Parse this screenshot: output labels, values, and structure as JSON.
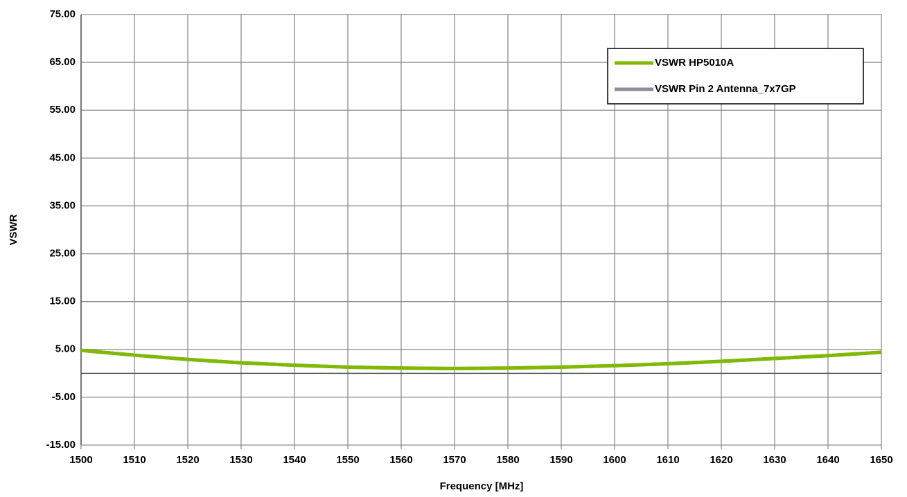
{
  "chart_data": {
    "type": "line",
    "x_label": "Frequency [MHz]",
    "y_label": "VSWR",
    "x": [
      1500,
      1510,
      1520,
      1530,
      1540,
      1550,
      1560,
      1570,
      1580,
      1590,
      1600,
      1610,
      1620,
      1630,
      1640,
      1650
    ],
    "series": [
      {
        "name": "VSWR Pin 2 Antenna_7x7GP",
        "color": "#8a8c99",
        "values": [
          4.8,
          3.8,
          2.9,
          2.2,
          1.7,
          1.3,
          1.1,
          1.0,
          1.1,
          1.3,
          1.6,
          2.0,
          2.5,
          3.1,
          3.7,
          4.4
        ]
      },
      {
        "name": "VSWR HP5010A",
        "color": "#7fba00",
        "values": [
          4.8,
          3.8,
          2.9,
          2.2,
          1.7,
          1.3,
          1.1,
          1.0,
          1.1,
          1.3,
          1.6,
          2.0,
          2.5,
          3.1,
          3.7,
          4.4
        ]
      }
    ],
    "legend_order": [
      1,
      0
    ],
    "xlim": [
      1500,
      1650
    ],
    "xticks": [
      1500,
      1510,
      1520,
      1530,
      1540,
      1550,
      1560,
      1570,
      1580,
      1590,
      1600,
      1610,
      1620,
      1630,
      1640,
      1650
    ],
    "ylim": [
      -15,
      75
    ],
    "yticks": [
      {
        "value": -15,
        "label": "-15.00"
      },
      {
        "value": -5,
        "label": "-5.00"
      },
      {
        "value": 5,
        "label": "5.00"
      },
      {
        "value": 15,
        "label": "15.00"
      },
      {
        "value": 25,
        "label": "25.00"
      },
      {
        "value": 35,
        "label": "35.00"
      },
      {
        "value": 45,
        "label": "45.00"
      },
      {
        "value": 55,
        "label": "55.00"
      },
      {
        "value": 65,
        "label": "65.00"
      },
      {
        "value": 75,
        "label": "75.00"
      }
    ],
    "grid": true,
    "legend": "upper right"
  }
}
